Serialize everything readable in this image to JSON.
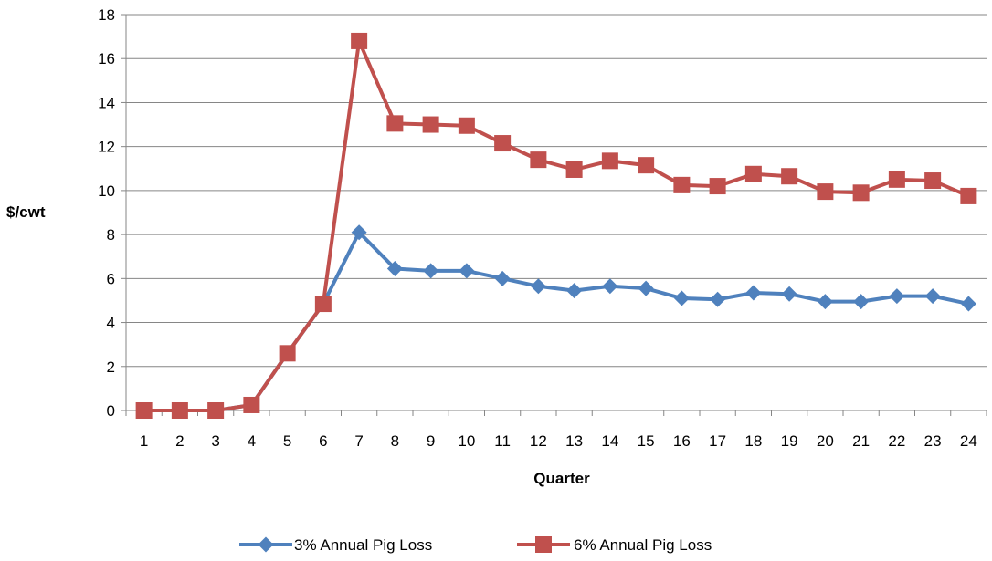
{
  "chart_data": {
    "type": "line",
    "title": "",
    "xlabel": "Quarter",
    "ylabel": "$/cwt",
    "categories": [
      "1",
      "2",
      "3",
      "4",
      "5",
      "6",
      "7",
      "8",
      "9",
      "10",
      "11",
      "12",
      "13",
      "14",
      "15",
      "16",
      "17",
      "18",
      "19",
      "20",
      "21",
      "22",
      "23",
      "24"
    ],
    "ylim": [
      0,
      18
    ],
    "yticks": [
      "0",
      "2",
      "4",
      "6",
      "8",
      "10",
      "12",
      "14",
      "16",
      "18"
    ],
    "grid": true,
    "legend_position": "bottom",
    "series": [
      {
        "name": "3% Annual Pig Loss",
        "color": "#4F81BD",
        "marker": "diamond",
        "values": [
          0,
          0,
          0,
          0.25,
          2.6,
          4.85,
          8.1,
          6.45,
          6.35,
          6.35,
          6.0,
          5.65,
          5.45,
          5.65,
          5.55,
          5.1,
          5.05,
          5.35,
          5.3,
          4.95,
          4.95,
          5.2,
          5.2,
          4.85
        ]
      },
      {
        "name": "6% Annual Pig Loss",
        "color": "#C0504D",
        "marker": "square",
        "values": [
          0,
          0,
          0,
          0.25,
          2.6,
          4.85,
          16.8,
          13.05,
          13.0,
          12.95,
          12.15,
          11.4,
          10.95,
          11.35,
          11.15,
          10.25,
          10.2,
          10.75,
          10.65,
          9.95,
          9.9,
          10.5,
          10.45,
          9.75
        ]
      }
    ]
  }
}
